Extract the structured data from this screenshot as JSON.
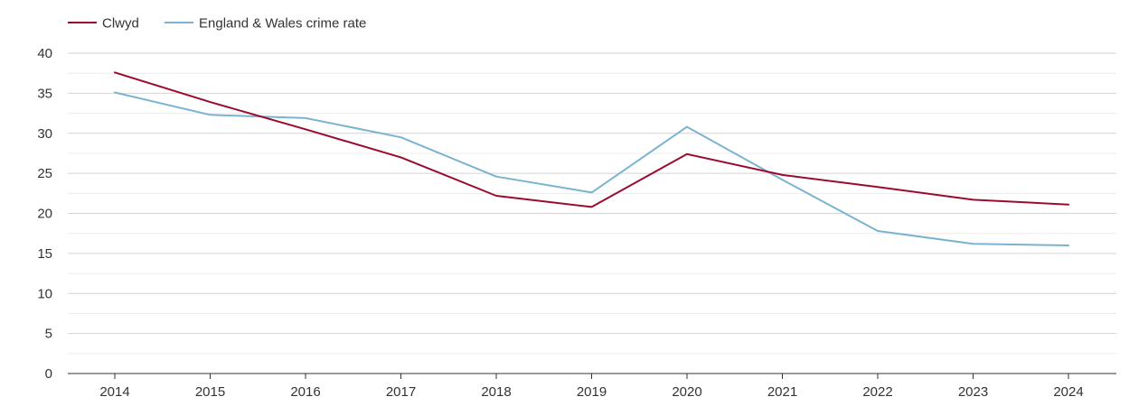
{
  "chart_data": {
    "type": "line",
    "title": "",
    "xlabel": "",
    "ylabel": "",
    "categories": [
      "2014",
      "2015",
      "2016",
      "2017",
      "2018",
      "2019",
      "2020",
      "2021",
      "2022",
      "2023",
      "2024"
    ],
    "ylim": [
      0,
      40
    ],
    "yticks": [
      "0",
      "5",
      "10",
      "15",
      "20",
      "25",
      "30",
      "35",
      "40"
    ],
    "grid": true,
    "legend_position": "top-left",
    "series": [
      {
        "name": "Clwyd",
        "color": "#9b0b30",
        "values": [
          37.6,
          33.9,
          30.5,
          27.0,
          22.2,
          20.8,
          27.4,
          24.8,
          23.3,
          21.7,
          21.1
        ]
      },
      {
        "name": "England & Wales crime rate",
        "color": "#7ab3d1",
        "values": [
          35.1,
          32.3,
          31.9,
          29.5,
          24.6,
          22.6,
          30.8,
          24.2,
          17.8,
          16.2,
          16.0
        ]
      }
    ]
  }
}
